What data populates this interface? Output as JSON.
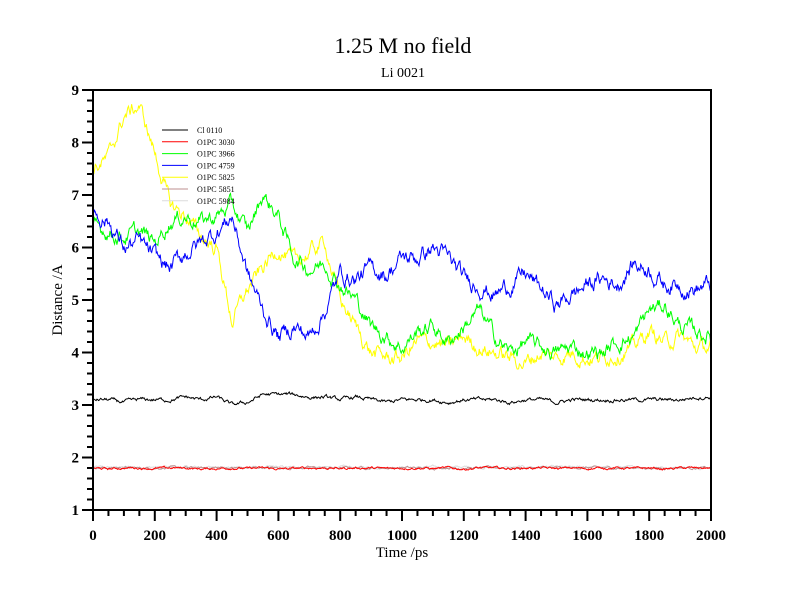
{
  "chart_data": {
    "type": "line",
    "title": "1.25 M no field",
    "subtitle": "Li 0021",
    "xlabel": "Time /ps",
    "ylabel": "Distance /A",
    "xlim": [
      0,
      2000
    ],
    "ylim": [
      1,
      9
    ],
    "x_ticks": [
      0,
      200,
      400,
      600,
      800,
      1000,
      1200,
      1400,
      1600,
      1800,
      2000
    ],
    "y_ticks": [
      1,
      2,
      3,
      4,
      5,
      6,
      7,
      8,
      9
    ],
    "x_minor_step": 50,
    "y_minor_step": 0.2,
    "grid": false,
    "legend_position": "top-left",
    "x": [
      0,
      50,
      100,
      150,
      200,
      250,
      300,
      350,
      400,
      450,
      500,
      550,
      600,
      650,
      700,
      750,
      800,
      850,
      900,
      950,
      1000,
      1050,
      1100,
      1150,
      1200,
      1250,
      1300,
      1350,
      1400,
      1450,
      1500,
      1550,
      1600,
      1650,
      1700,
      1750,
      1800,
      1850,
      1900,
      1950,
      2000
    ],
    "series": [
      {
        "name": "Cl 0110",
        "color": "#000000",
        "noise": 0.05,
        "values": [
          3.1,
          3.1,
          3.05,
          3.1,
          3.1,
          3.1,
          3.15,
          3.1,
          3.15,
          3.0,
          3.05,
          3.2,
          3.2,
          3.2,
          3.15,
          3.15,
          3.1,
          3.15,
          3.1,
          3.05,
          3.1,
          3.1,
          3.1,
          3.05,
          3.1,
          3.1,
          3.1,
          3.05,
          3.1,
          3.1,
          3.05,
          3.1,
          3.1,
          3.1,
          3.1,
          3.1,
          3.1,
          3.1,
          3.1,
          3.15,
          3.15
        ]
      },
      {
        "name": "O1PC 3030",
        "color": "#ff0000",
        "noise": 0.03,
        "values": [
          1.8,
          1.78,
          1.8,
          1.8,
          1.79,
          1.8,
          1.8,
          1.78,
          1.79,
          1.8,
          1.79,
          1.8,
          1.78,
          1.79,
          1.8,
          1.8,
          1.79,
          1.8,
          1.8,
          1.79,
          1.8,
          1.8,
          1.79,
          1.8,
          1.78,
          1.8,
          1.8,
          1.79,
          1.8,
          1.8,
          1.79,
          1.8,
          1.79,
          1.8,
          1.8,
          1.79,
          1.8,
          1.78,
          1.8,
          1.8,
          1.8
        ]
      },
      {
        "name": "O1PC 3966",
        "color": "#00ff00",
        "noise": 0.2,
        "values": [
          6.4,
          6.3,
          6.2,
          6.3,
          6.1,
          6.5,
          6.6,
          6.5,
          6.6,
          6.8,
          6.3,
          7.0,
          6.6,
          5.8,
          5.6,
          5.7,
          5.3,
          5.0,
          4.5,
          4.3,
          4.1,
          4.4,
          4.5,
          4.2,
          4.5,
          4.8,
          4.3,
          4.0,
          4.2,
          4.1,
          4.0,
          4.1,
          4.0,
          4.0,
          4.2,
          4.3,
          4.8,
          4.9,
          4.5,
          4.4,
          4.3
        ]
      },
      {
        "name": "O1PC 4759",
        "color": "#0000ff",
        "noise": 0.22,
        "values": [
          6.7,
          6.5,
          6.0,
          6.1,
          5.8,
          5.6,
          5.9,
          6.1,
          6.3,
          6.6,
          5.5,
          4.8,
          4.3,
          4.5,
          4.3,
          4.8,
          5.5,
          5.4,
          5.6,
          5.5,
          5.8,
          5.8,
          6.0,
          5.8,
          5.4,
          5.3,
          5.1,
          5.3,
          5.5,
          5.2,
          4.9,
          5.1,
          5.3,
          5.4,
          5.3,
          5.7,
          5.6,
          5.3,
          5.3,
          5.2,
          5.3
        ]
      },
      {
        "name": "O1PC 5825",
        "color": "#ffff00",
        "noise": 0.2,
        "values": [
          7.5,
          7.7,
          8.5,
          8.7,
          7.8,
          6.8,
          6.6,
          6.2,
          6.0,
          4.6,
          5.2,
          5.6,
          6.0,
          5.7,
          5.9,
          6.1,
          5.0,
          4.5,
          4.0,
          3.9,
          3.9,
          4.2,
          4.2,
          4.1,
          4.3,
          4.1,
          4.0,
          3.9,
          3.8,
          4.0,
          3.9,
          4.0,
          3.9,
          3.9,
          4.0,
          4.1,
          4.4,
          4.2,
          4.3,
          4.1,
          4.1
        ]
      },
      {
        "name": "O1PC 5851",
        "color": "#bc8f8f",
        "noise": 0.03,
        "values": [
          1.81,
          1.8,
          1.81,
          1.8,
          1.8,
          1.81,
          1.8,
          1.8,
          1.81,
          1.8,
          1.8,
          1.81,
          1.8,
          1.8,
          1.81,
          1.8,
          1.8,
          1.81,
          1.8,
          1.8,
          1.81,
          1.8,
          1.8,
          1.81,
          1.8,
          1.8,
          1.81,
          1.8,
          1.8,
          1.81,
          1.8,
          1.8,
          1.81,
          1.8,
          1.8,
          1.81,
          1.8,
          1.8,
          1.81,
          1.8,
          1.8
        ]
      },
      {
        "name": "O1PC 5984",
        "color": "#dcdcdc",
        "noise": 0.03,
        "values": [
          1.82,
          1.81,
          1.82,
          1.81,
          1.82,
          1.81,
          1.82,
          1.81,
          1.82,
          1.81,
          1.82,
          1.81,
          1.82,
          1.81,
          1.82,
          1.81,
          1.82,
          1.81,
          1.82,
          1.81,
          1.82,
          1.81,
          1.82,
          1.81,
          1.82,
          1.81,
          1.82,
          1.81,
          1.82,
          1.81,
          1.82,
          1.81,
          1.82,
          1.81,
          1.82,
          1.81,
          1.82,
          1.81,
          1.82,
          1.81,
          1.82
        ]
      }
    ]
  }
}
